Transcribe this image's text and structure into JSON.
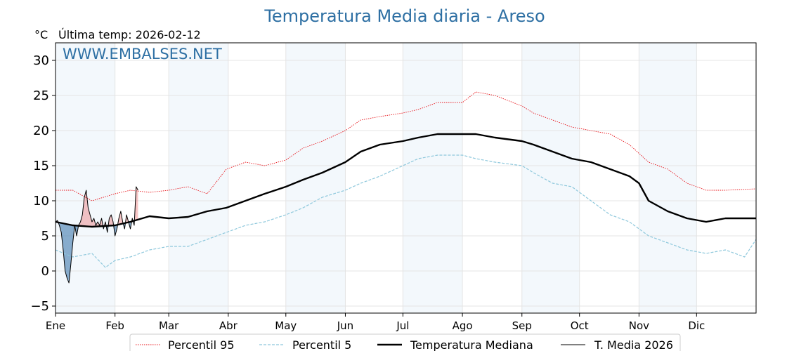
{
  "chart_data": {
    "type": "line",
    "title": "Temperatura Media diaria - Areso",
    "unit_label": "°C",
    "subtitle": "Última temp: 2026-02-12",
    "watermark": "WWW.EMBALSES.NET",
    "xlim": [
      1,
      366
    ],
    "ylim": [
      -6,
      32.5
    ],
    "yticks": [
      -5,
      0,
      5,
      10,
      15,
      20,
      25,
      30
    ],
    "months": [
      {
        "label": "Ene",
        "day": 1
      },
      {
        "label": "Feb",
        "day": 32
      },
      {
        "label": "Mar",
        "day": 60
      },
      {
        "label": "Abr",
        "day": 91
      },
      {
        "label": "May",
        "day": 121
      },
      {
        "label": "Jun",
        "day": 152
      },
      {
        "label": "Jul",
        "day": 182
      },
      {
        "label": "Ago",
        "day": 213
      },
      {
        "label": "Sep",
        "day": 244
      },
      {
        "label": "Oct",
        "day": 274
      },
      {
        "label": "Nov",
        "day": 305
      },
      {
        "label": "Dic",
        "day": 335
      }
    ],
    "shaded_month_bands": [
      [
        1,
        32
      ],
      [
        60,
        91
      ],
      [
        121,
        152
      ],
      [
        182,
        213
      ],
      [
        244,
        274
      ],
      [
        305,
        335
      ]
    ],
    "grid": true,
    "legend_placement": "bottom-center",
    "series": [
      {
        "name": "Percentil 95",
        "style": "dotted",
        "color": "#e8141a",
        "points": [
          [
            1,
            11.5
          ],
          [
            10,
            11.5
          ],
          [
            20,
            10
          ],
          [
            32,
            11
          ],
          [
            40,
            11.5
          ],
          [
            50,
            11.2
          ],
          [
            60,
            11.5
          ],
          [
            70,
            12
          ],
          [
            80,
            11
          ],
          [
            90,
            14.5
          ],
          [
            100,
            15.5
          ],
          [
            110,
            15
          ],
          [
            121,
            15.8
          ],
          [
            130,
            17.5
          ],
          [
            140,
            18.5
          ],
          [
            152,
            20
          ],
          [
            160,
            21.5
          ],
          [
            170,
            22
          ],
          [
            182,
            22.5
          ],
          [
            190,
            23
          ],
          [
            200,
            24
          ],
          [
            213,
            24
          ],
          [
            220,
            25.5
          ],
          [
            230,
            25
          ],
          [
            244,
            23.5
          ],
          [
            250,
            22.5
          ],
          [
            260,
            21.5
          ],
          [
            270,
            20.5
          ],
          [
            280,
            20
          ],
          [
            290,
            19.5
          ],
          [
            300,
            18
          ],
          [
            310,
            15.5
          ],
          [
            320,
            14.5
          ],
          [
            330,
            12.5
          ],
          [
            340,
            11.5
          ],
          [
            350,
            11.5
          ],
          [
            366,
            11.7
          ]
        ]
      },
      {
        "name": "Percentil 5",
        "style": "dashed",
        "color": "#8ec8dc",
        "points": [
          [
            1,
            3
          ],
          [
            10,
            2
          ],
          [
            20,
            2.5
          ],
          [
            27,
            0.5
          ],
          [
            32,
            1.5
          ],
          [
            40,
            2
          ],
          [
            50,
            3
          ],
          [
            60,
            3.5
          ],
          [
            70,
            3.5
          ],
          [
            80,
            4.5
          ],
          [
            90,
            5.5
          ],
          [
            100,
            6.5
          ],
          [
            110,
            7
          ],
          [
            121,
            8
          ],
          [
            130,
            9
          ],
          [
            140,
            10.5
          ],
          [
            152,
            11.5
          ],
          [
            160,
            12.5
          ],
          [
            170,
            13.5
          ],
          [
            182,
            15
          ],
          [
            190,
            16
          ],
          [
            200,
            16.5
          ],
          [
            213,
            16.5
          ],
          [
            220,
            16
          ],
          [
            230,
            15.5
          ],
          [
            244,
            15
          ],
          [
            250,
            14
          ],
          [
            260,
            12.5
          ],
          [
            270,
            12
          ],
          [
            280,
            10
          ],
          [
            290,
            8
          ],
          [
            300,
            7
          ],
          [
            310,
            5
          ],
          [
            320,
            4
          ],
          [
            330,
            3
          ],
          [
            340,
            2.5
          ],
          [
            350,
            3
          ],
          [
            360,
            2
          ],
          [
            366,
            4.5
          ]
        ]
      },
      {
        "name": "Temperatura Mediana",
        "style": "solid-thick",
        "color": "#000000",
        "points": [
          [
            1,
            7
          ],
          [
            10,
            6.5
          ],
          [
            20,
            6.3
          ],
          [
            32,
            6.5
          ],
          [
            40,
            7
          ],
          [
            50,
            7.8
          ],
          [
            60,
            7.5
          ],
          [
            70,
            7.7
          ],
          [
            80,
            8.5
          ],
          [
            90,
            9
          ],
          [
            100,
            10
          ],
          [
            110,
            11
          ],
          [
            121,
            12
          ],
          [
            130,
            13
          ],
          [
            140,
            14
          ],
          [
            152,
            15.5
          ],
          [
            160,
            17
          ],
          [
            170,
            18
          ],
          [
            182,
            18.5
          ],
          [
            190,
            19
          ],
          [
            200,
            19.5
          ],
          [
            213,
            19.5
          ],
          [
            220,
            19.5
          ],
          [
            230,
            19
          ],
          [
            244,
            18.5
          ],
          [
            250,
            18
          ],
          [
            260,
            17
          ],
          [
            270,
            16
          ],
          [
            280,
            15.5
          ],
          [
            290,
            14.5
          ],
          [
            300,
            13.5
          ],
          [
            305,
            12.5
          ],
          [
            310,
            10
          ],
          [
            320,
            8.5
          ],
          [
            330,
            7.5
          ],
          [
            340,
            7
          ],
          [
            350,
            7.5
          ],
          [
            366,
            7.5
          ]
        ]
      },
      {
        "name": "T. Media 2026",
        "style": "solid-thin",
        "color": "#000000",
        "points": [
          [
            1,
            7
          ],
          [
            2,
            7.2
          ],
          [
            3,
            6.5
          ],
          [
            4,
            5.5
          ],
          [
            5,
            3
          ],
          [
            6,
            0
          ],
          [
            7,
            -1
          ],
          [
            8,
            -1.7
          ],
          [
            9,
            1
          ],
          [
            10,
            4
          ],
          [
            11,
            6.5
          ],
          [
            12,
            5
          ],
          [
            13,
            6.5
          ],
          [
            14,
            7
          ],
          [
            15,
            8
          ],
          [
            16,
            10.5
          ],
          [
            17,
            11.5
          ],
          [
            18,
            9
          ],
          [
            19,
            8
          ],
          [
            20,
            7
          ],
          [
            21,
            7.5
          ],
          [
            22,
            6.5
          ],
          [
            23,
            7
          ],
          [
            24,
            6.5
          ],
          [
            25,
            7.5
          ],
          [
            26,
            6
          ],
          [
            27,
            7
          ],
          [
            28,
            5.5
          ],
          [
            29,
            7.5
          ],
          [
            30,
            8
          ],
          [
            31,
            7
          ],
          [
            32,
            5
          ],
          [
            33,
            6
          ],
          [
            34,
            7.5
          ],
          [
            35,
            8.5
          ],
          [
            36,
            7
          ],
          [
            37,
            6
          ],
          [
            38,
            8
          ],
          [
            39,
            7
          ],
          [
            40,
            6
          ],
          [
            41,
            7.5
          ],
          [
            42,
            6.5
          ],
          [
            43,
            12
          ],
          [
            44,
            11.5
          ]
        ]
      }
    ]
  }
}
